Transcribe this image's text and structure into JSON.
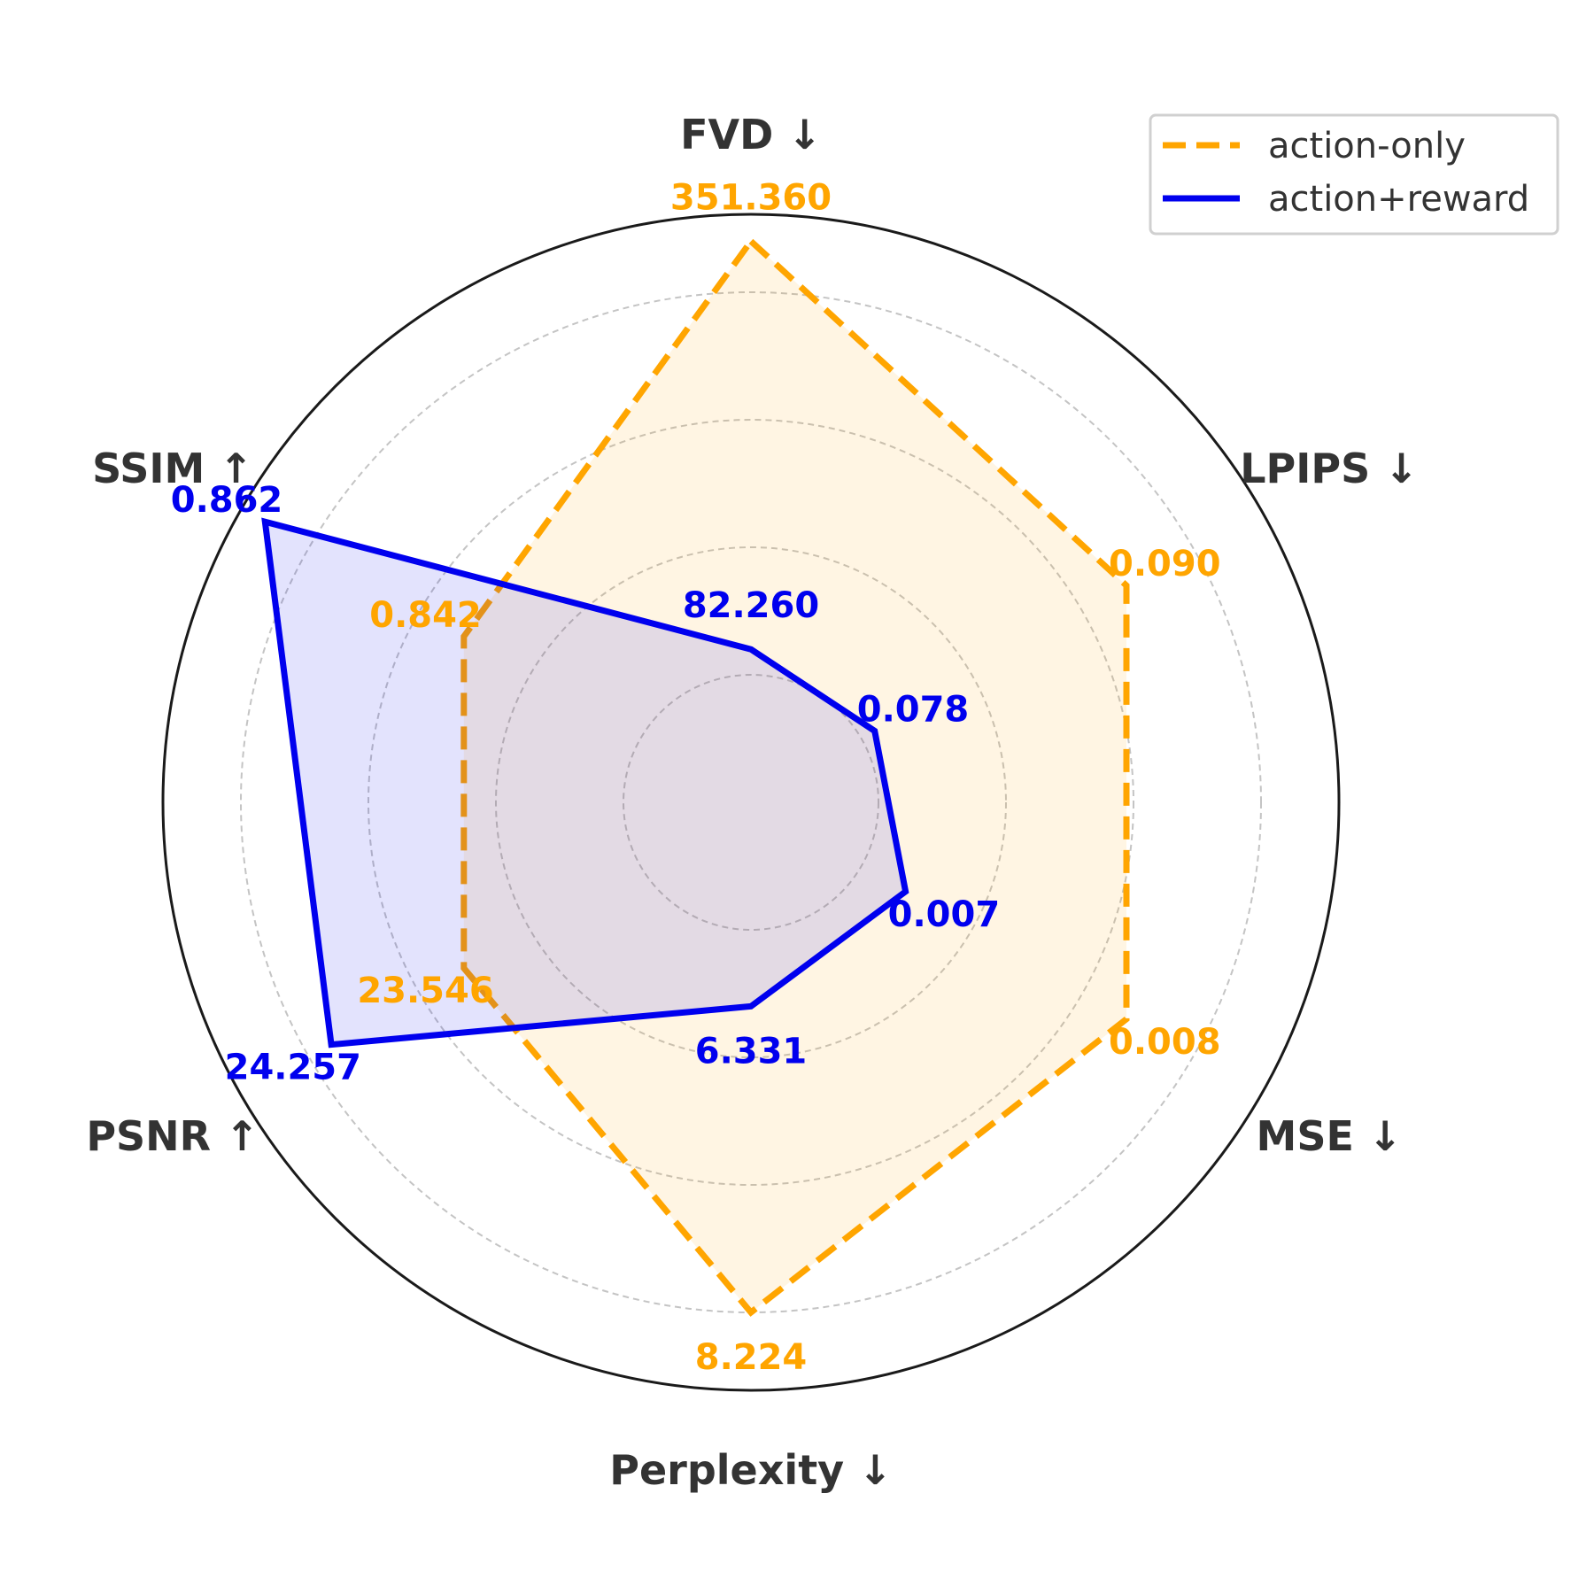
{
  "chart_data": {
    "type": "radar",
    "axes": [
      {
        "label": "FVD ↓",
        "higher_is_better": false
      },
      {
        "label": "LPIPS ↓",
        "higher_is_better": false
      },
      {
        "label": "MSE ↓",
        "higher_is_better": false
      },
      {
        "label": "Perplexity ↓",
        "higher_is_better": false
      },
      {
        "label": "PSNR ↑",
        "higher_is_better": true
      },
      {
        "label": "SSIM ↑",
        "higher_is_better": true
      }
    ],
    "series": [
      {
        "name": "action-only",
        "color": "#FFA500",
        "line_style": "dashed",
        "values": [
          351.36,
          0.09,
          0.008,
          8.224,
          23.546,
          0.842
        ],
        "value_labels": [
          "351.360",
          "0.090",
          "0.008",
          "8.224",
          "23.546",
          "0.842"
        ]
      },
      {
        "name": "action+reward",
        "color": "#0000EE",
        "line_style": "solid",
        "values": [
          82.26,
          0.078,
          0.007,
          6.331,
          24.257,
          0.862
        ],
        "value_labels": [
          "82.260",
          "0.078",
          "0.007",
          "6.331",
          "24.257",
          "0.862"
        ]
      }
    ],
    "normalized_radius": {
      "action-only": [
        1.1,
        0.85,
        0.85,
        1.0,
        0.65,
        0.65
      ],
      "action+reward": [
        0.3,
        0.28,
        0.35,
        0.4,
        0.95,
        1.1
      ]
    },
    "grid": true,
    "legend_position": "top-right"
  }
}
